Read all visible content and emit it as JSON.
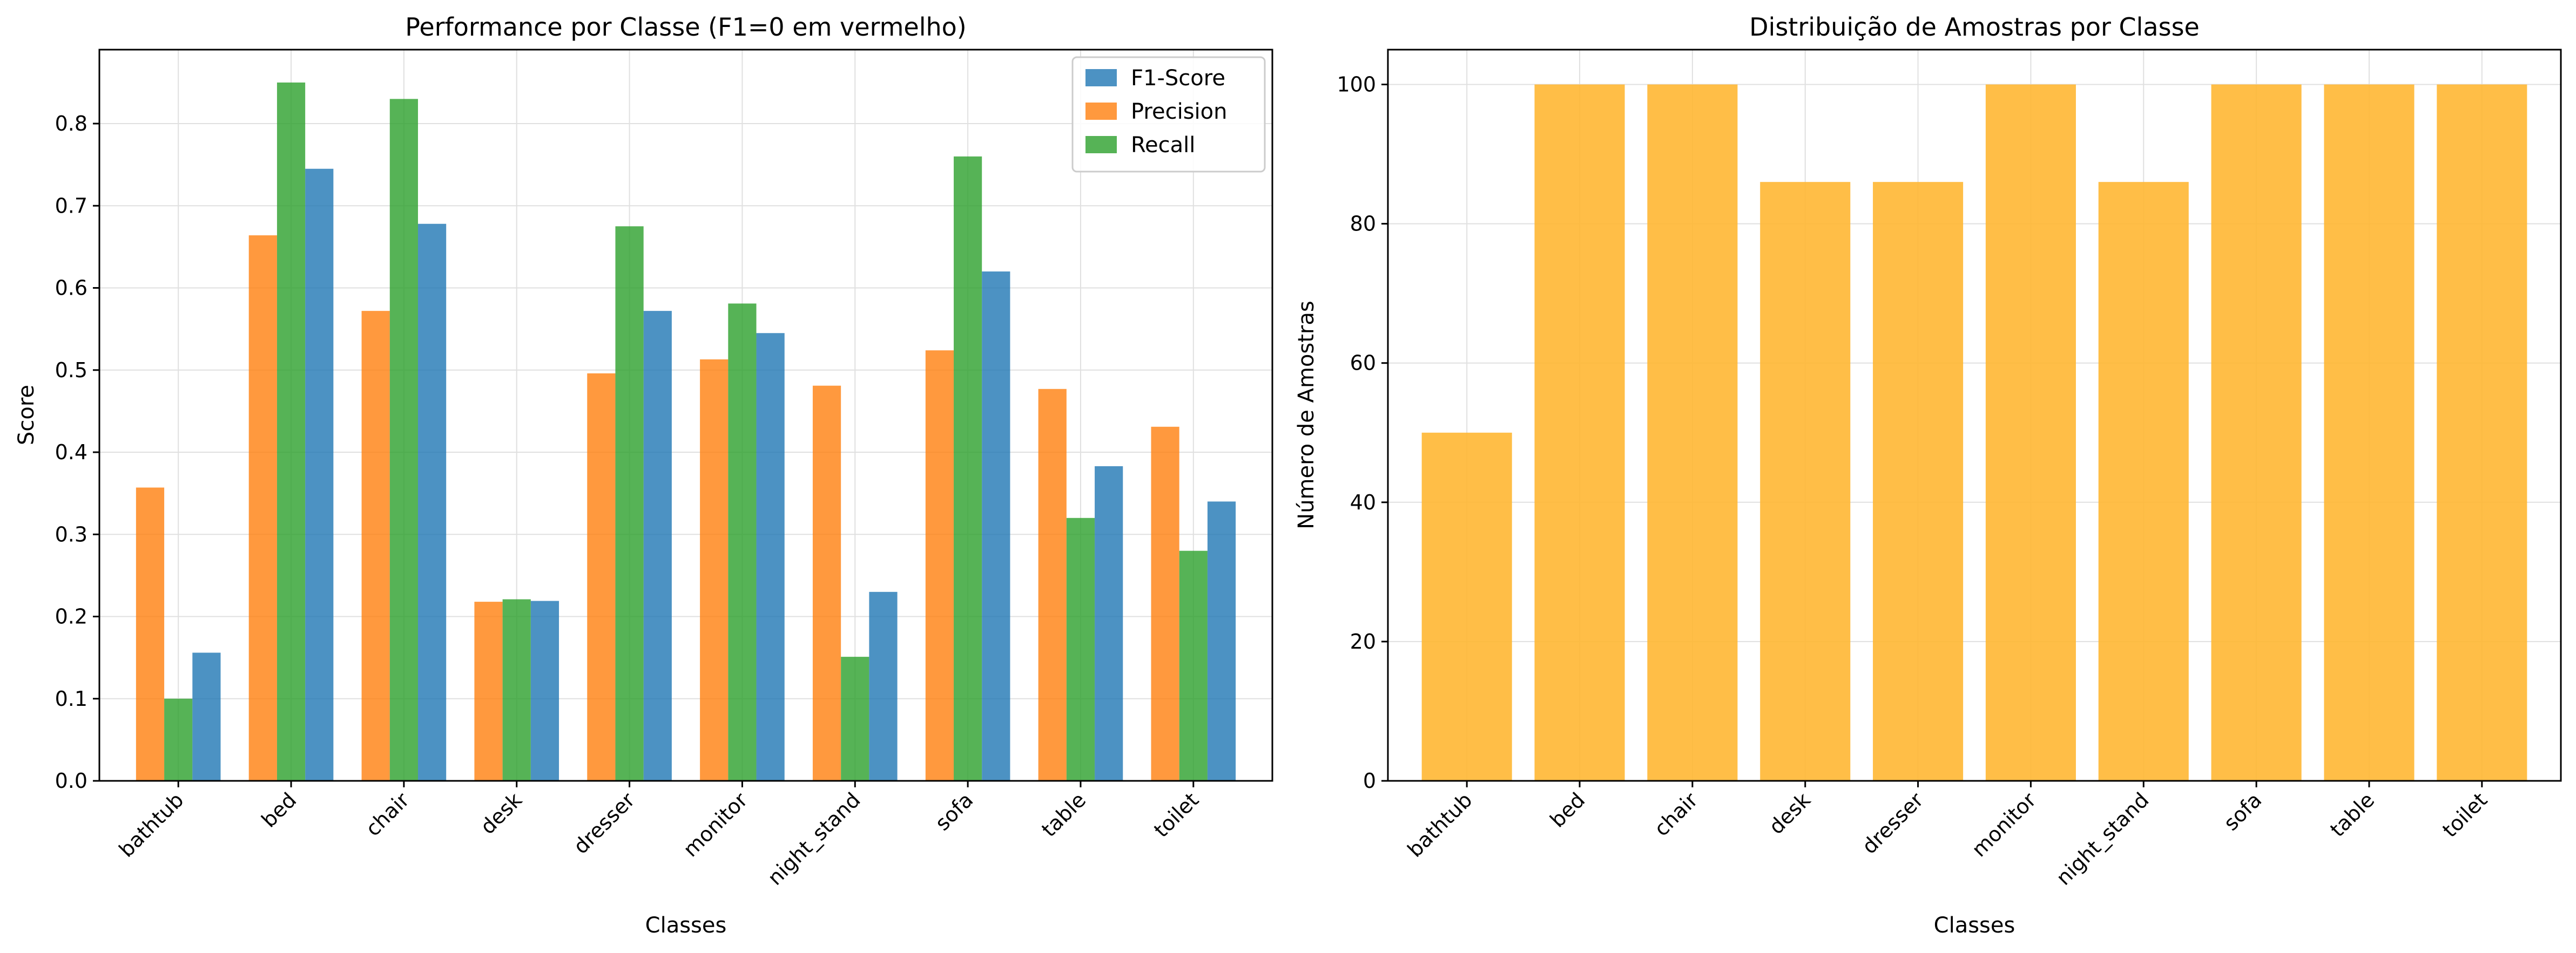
{
  "chart_data": [
    {
      "type": "bar",
      "title": "Performance por Classe (F1=0 em vermelho)",
      "xlabel": "Classes",
      "ylabel": "Score",
      "categories": [
        "bathtub",
        "bed",
        "chair",
        "desk",
        "dresser",
        "monitor",
        "night_stand",
        "sofa",
        "table",
        "toilet"
      ],
      "ylim": [
        0,
        0.89
      ],
      "yticks": [
        "0.0",
        "0.1",
        "0.2",
        "0.3",
        "0.4",
        "0.5",
        "0.6",
        "0.7",
        "0.8"
      ],
      "grid": true,
      "legend_position": "top-right",
      "series": [
        {
          "name": "Precision",
          "color": "#ff7f0e",
          "values": [
            0.357,
            0.664,
            0.572,
            0.218,
            0.496,
            0.513,
            0.481,
            0.524,
            0.477,
            0.431
          ]
        },
        {
          "name": "Recall",
          "color": "#2ca02c",
          "values": [
            0.1,
            0.85,
            0.83,
            0.221,
            0.675,
            0.581,
            0.151,
            0.76,
            0.32,
            0.28
          ]
        },
        {
          "name": "F1-Score",
          "color": "#1f77b4",
          "values": [
            0.156,
            0.745,
            0.678,
            0.219,
            0.572,
            0.545,
            0.23,
            0.62,
            0.383,
            0.34
          ]
        }
      ],
      "legend_order": [
        "F1-Score",
        "Precision",
        "Recall"
      ]
    },
    {
      "type": "bar",
      "title": "Distribuição de Amostras por Classe",
      "xlabel": "Classes",
      "ylabel": "Número de Amostras",
      "categories": [
        "bathtub",
        "bed",
        "chair",
        "desk",
        "dresser",
        "monitor",
        "night_stand",
        "sofa",
        "table",
        "toilet"
      ],
      "values": [
        50,
        100,
        100,
        86,
        86,
        100,
        86,
        100,
        100,
        100
      ],
      "ylim": [
        0,
        105
      ],
      "yticks": [
        "0",
        "20",
        "40",
        "60",
        "80",
        "100"
      ],
      "grid": true,
      "color": "#ffb733"
    }
  ]
}
